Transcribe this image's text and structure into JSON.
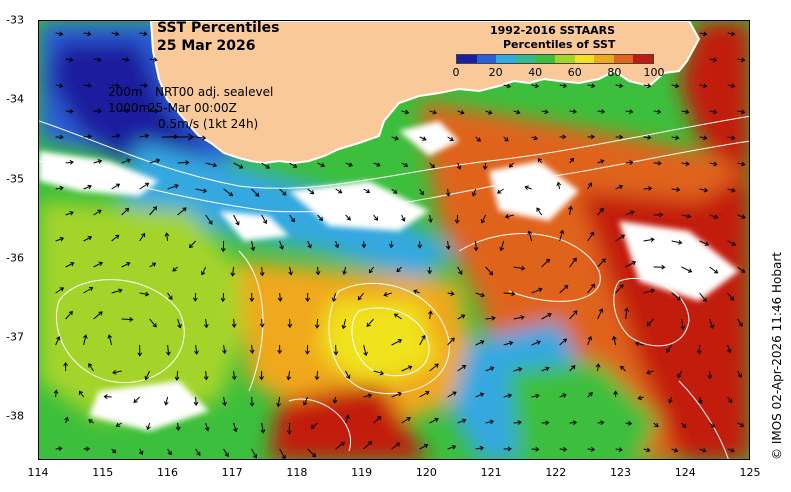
{
  "title": {
    "line1": "SST Percentiles",
    "line2": "25 Mar 2026"
  },
  "colorbar": {
    "title_line1": "1992-2016 SSTAARS",
    "title_line2": "Percentiles of SST",
    "colors": [
      "#1a1f9e",
      "#2a5fd8",
      "#36a8e0",
      "#33b890",
      "#3cbf3c",
      "#a4d42a",
      "#f0e21e",
      "#f0a81e",
      "#e0641a",
      "#c21a0e"
    ],
    "ticks": [
      "0",
      "20",
      "40",
      "60",
      "80",
      "100"
    ]
  },
  "legend": {
    "line1_left": "200m",
    "line1_right": "NRT00 adj. sealevel",
    "line2_left": "1000m",
    "line2_right": "25-Mar 00:00Z",
    "arrow_label": "0.5m/s (1kt 24h)"
  },
  "copyright": "© IMOS 02-Apr-2026 11:46 Hobart",
  "axes": {
    "x_ticks": [
      "114",
      "115",
      "116",
      "117",
      "118",
      "119",
      "120",
      "121",
      "122",
      "123",
      "124",
      "125"
    ],
    "y_ticks": [
      "-33",
      "-34",
      "-35",
      "-36",
      "-37",
      "-38"
    ],
    "xlim": [
      114,
      125
    ],
    "ylim": [
      -38.55,
      -33
    ]
  },
  "colors": {
    "land": "#f9c99a",
    "land_border": "#ffffff",
    "contour": "#ffffff",
    "arrow": "#000000"
  }
}
